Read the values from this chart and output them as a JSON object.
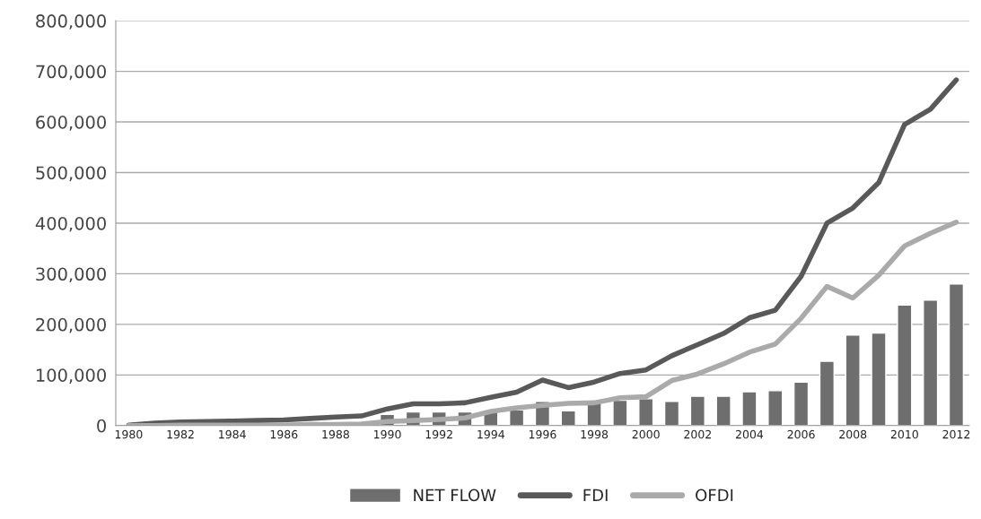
{
  "chart_data": {
    "type": "bar",
    "categories": [
      "1980",
      null,
      "1982",
      null,
      "1984",
      null,
      "1986",
      null,
      "1988",
      null,
      "1990",
      null,
      "1992",
      null,
      "1994",
      null,
      "1996",
      null,
      "1998",
      null,
      "2000",
      null,
      "2002",
      null,
      "2004",
      null,
      "2006",
      null,
      "2008",
      null,
      "2010",
      null,
      "2012"
    ],
    "series": [
      {
        "name": "NET FLOW",
        "color": "#6e6e6e",
        "values": [
          null,
          null,
          null,
          null,
          null,
          null,
          null,
          null,
          null,
          null,
          22000,
          27000,
          27000,
          27000,
          28000,
          31000,
          48000,
          29000,
          45000,
          50000,
          53000,
          48000,
          58000,
          58000,
          67000,
          69000,
          86000,
          127000,
          179000,
          183000,
          238000,
          248000,
          280000
        ]
      },
      {
        "name": "FDI",
        "type": "line",
        "color": "#595959",
        "values": [
          1000,
          5000,
          7000,
          8000,
          9000,
          10000,
          11000,
          14000,
          17000,
          19000,
          33000,
          43000,
          43000,
          45000,
          56000,
          66000,
          90000,
          75000,
          86000,
          103000,
          110000,
          138000,
          160000,
          182000,
          213000,
          228000,
          295000,
          400000,
          430000,
          480000,
          595000,
          625000,
          683000
        ]
      },
      {
        "name": "OFDI",
        "type": "line",
        "color": "#aaaaaa",
        "values": [
          0,
          0,
          1000,
          1000,
          1000,
          1000,
          1000,
          2000,
          2000,
          3000,
          8000,
          10000,
          12000,
          15000,
          28000,
          35000,
          40000,
          44000,
          45000,
          55000,
          57000,
          89000,
          102000,
          122000,
          145000,
          161000,
          212000,
          275000,
          252000,
          297000,
          355000,
          380000,
          402000
        ]
      }
    ],
    "ylim": [
      0,
      800000
    ],
    "yticks": [
      {
        "value": 0,
        "label": "0"
      },
      {
        "value": 100000,
        "label": "100,000"
      },
      {
        "value": 200000,
        "label": "200,000"
      },
      {
        "value": 300000,
        "label": "300,000"
      },
      {
        "value": 400000,
        "label": "400,000"
      },
      {
        "value": 500000,
        "label": "500,000"
      },
      {
        "value": 600000,
        "label": "600,000"
      },
      {
        "value": 700000,
        "label": "700,000"
      },
      {
        "value": 800000,
        "label": "800,000"
      }
    ],
    "grid": "y",
    "legend": "bottom"
  }
}
